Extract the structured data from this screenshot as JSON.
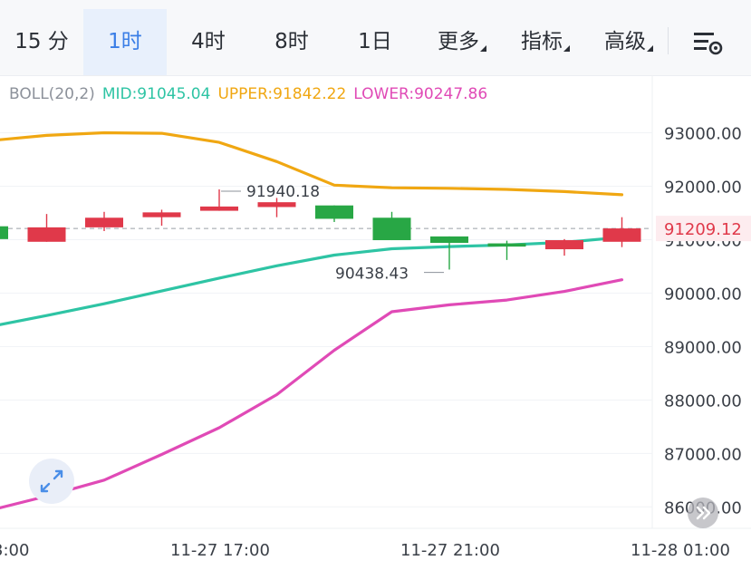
{
  "toolbar": {
    "tabs": [
      {
        "label": "15 分",
        "active": false
      },
      {
        "label": "1时",
        "active": true
      },
      {
        "label": "4时",
        "active": false
      },
      {
        "label": "8时",
        "active": false
      },
      {
        "label": "1日",
        "active": false
      },
      {
        "label": "更多",
        "active": false,
        "dropdown": true
      },
      {
        "label": "指标",
        "active": false,
        "dropdown": true
      },
      {
        "label": "高级",
        "active": false,
        "dropdown": true
      }
    ],
    "settings_icon": "chart-settings-icon"
  },
  "legend": {
    "name": "BOLL(20,2)",
    "mid": "MID:91045.04",
    "upper": "UPPER:91842.22",
    "lower": "LOWER:90247.86"
  },
  "colors": {
    "mid": "#2ec4a4",
    "upper": "#f0a712",
    "lower": "#e04ab6",
    "up": "#28a745",
    "down": "#e0394a",
    "price_line": "#e0394a",
    "active_tab": "#3a7ee6"
  },
  "chart_data": {
    "type": "candlestick",
    "indicator": "BOLL(20,2)",
    "y_ticks": [
      "93000.00",
      "92000.00",
      "91000.00",
      "90000.00",
      "89000.00",
      "88000.00",
      "87000.00",
      "86000.00"
    ],
    "y_range": [
      85900,
      93600
    ],
    "x_ticks": [
      "3:00",
      "11-27 17:00",
      "11-27 21:00",
      "11-28 01:00"
    ],
    "last_price": "91209.12",
    "last_price_value": 91209.12,
    "high_label": "91940.18",
    "low_label": "90438.43",
    "candles": [
      {
        "open": 91010,
        "close": 91250,
        "high": 91250,
        "low": 91010
      },
      {
        "open": 91230,
        "close": 90960,
        "high": 91480,
        "low": 90960
      },
      {
        "open": 91410,
        "close": 91230,
        "high": 91520,
        "low": 91160
      },
      {
        "open": 91510,
        "close": 91420,
        "high": 91560,
        "low": 91260
      },
      {
        "open": 91620,
        "close": 91540,
        "high": 91940,
        "low": 91540
      },
      {
        "open": 91700,
        "close": 91610,
        "high": 91780,
        "low": 91420
      },
      {
        "open": 91390,
        "close": 91640,
        "high": 91640,
        "low": 91330
      },
      {
        "open": 90990,
        "close": 91410,
        "high": 91520,
        "low": 90990
      },
      {
        "open": 90940,
        "close": 91060,
        "high": 91060,
        "low": 90440
      },
      {
        "open": 90870,
        "close": 90930,
        "high": 90980,
        "low": 90620
      },
      {
        "open": 90990,
        "close": 90820,
        "high": 91010,
        "low": 90700
      },
      {
        "open": 91210,
        "close": 90960,
        "high": 91420,
        "low": 90860
      }
    ],
    "upper": [
      92850,
      92950,
      93000,
      92990,
      92820,
      92460,
      92020,
      91970,
      91960,
      91940,
      91900,
      91840
    ],
    "mid": [
      89370,
      89580,
      89800,
      90040,
      90280,
      90510,
      90710,
      90830,
      90870,
      90900,
      90950,
      91045
    ],
    "lower": [
      85930,
      86200,
      86500,
      86980,
      87480,
      88100,
      88930,
      89650,
      89780,
      89870,
      90030,
      90250
    ]
  }
}
